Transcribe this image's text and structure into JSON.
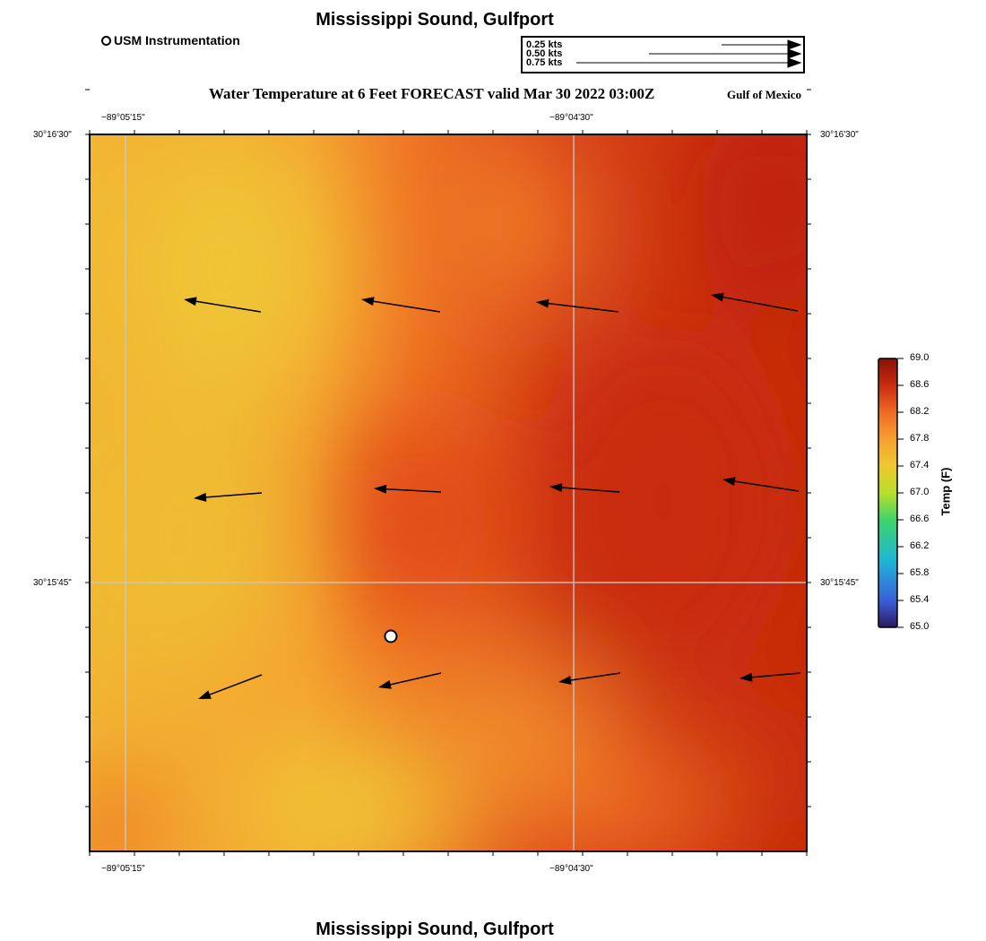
{
  "title": "Mississippi Sound, Gulfport",
  "footer_title": "Mississippi Sound, Gulfport",
  "legend": {
    "station_label": "USM Instrumentation"
  },
  "forecast_title": "Water Temperature at 6 Feet FORECAST valid Mar 30 2022 03:00Z",
  "region_label": "Gulf of Mexico",
  "speed_scale": [
    {
      "label": "0.25 kts",
      "speed": 0.25
    },
    {
      "label": "0.50 kts",
      "speed": 0.5
    },
    {
      "label": "0.75 kts",
      "speed": 0.75
    }
  ],
  "axes": {
    "lon_labels": [
      "−89°05'15\"",
      "−89°04'30\""
    ],
    "lat_labels": [
      "30°16'30\"",
      "30°15'45\""
    ]
  },
  "colorbar": {
    "title": "Temp (F)",
    "min": 65.0,
    "max": 69.0,
    "ticks": [
      "69.0",
      "68.6",
      "68.2",
      "67.8",
      "67.4",
      "67.0",
      "66.6",
      "66.2",
      "65.8",
      "65.4",
      "65.0"
    ],
    "colors": [
      "#2a1a5e",
      "#3a5fd8",
      "#20b6d6",
      "#3ed46a",
      "#b8e02a",
      "#eec830",
      "#f7a030",
      "#f06a24",
      "#d73a10",
      "#b01c08",
      "#8a1006"
    ]
  },
  "map": {
    "field_colors": [
      "#f0c030",
      "#f5a030",
      "#f07a28",
      "#e85a1a",
      "#d2361a",
      "#c62808"
    ],
    "vectors": [
      {
        "row": 0,
        "col": 0,
        "speed_kts": 0.28
      },
      {
        "row": 0,
        "col": 1,
        "speed_kts": 0.28
      },
      {
        "row": 0,
        "col": 2,
        "speed_kts": 0.29
      },
      {
        "row": 0,
        "col": 3,
        "speed_kts": 0.31
      },
      {
        "row": 1,
        "col": 0,
        "speed_kts": 0.25
      },
      {
        "row": 1,
        "col": 1,
        "speed_kts": 0.24
      },
      {
        "row": 1,
        "col": 2,
        "speed_kts": 0.26
      },
      {
        "row": 1,
        "col": 3,
        "speed_kts": 0.28
      },
      {
        "row": 2,
        "col": 0,
        "speed_kts": 0.26
      },
      {
        "row": 2,
        "col": 1,
        "speed_kts": 0.24
      },
      {
        "row": 2,
        "col": 2,
        "speed_kts": 0.23
      },
      {
        "row": 2,
        "col": 3,
        "speed_kts": 0.23
      }
    ]
  }
}
